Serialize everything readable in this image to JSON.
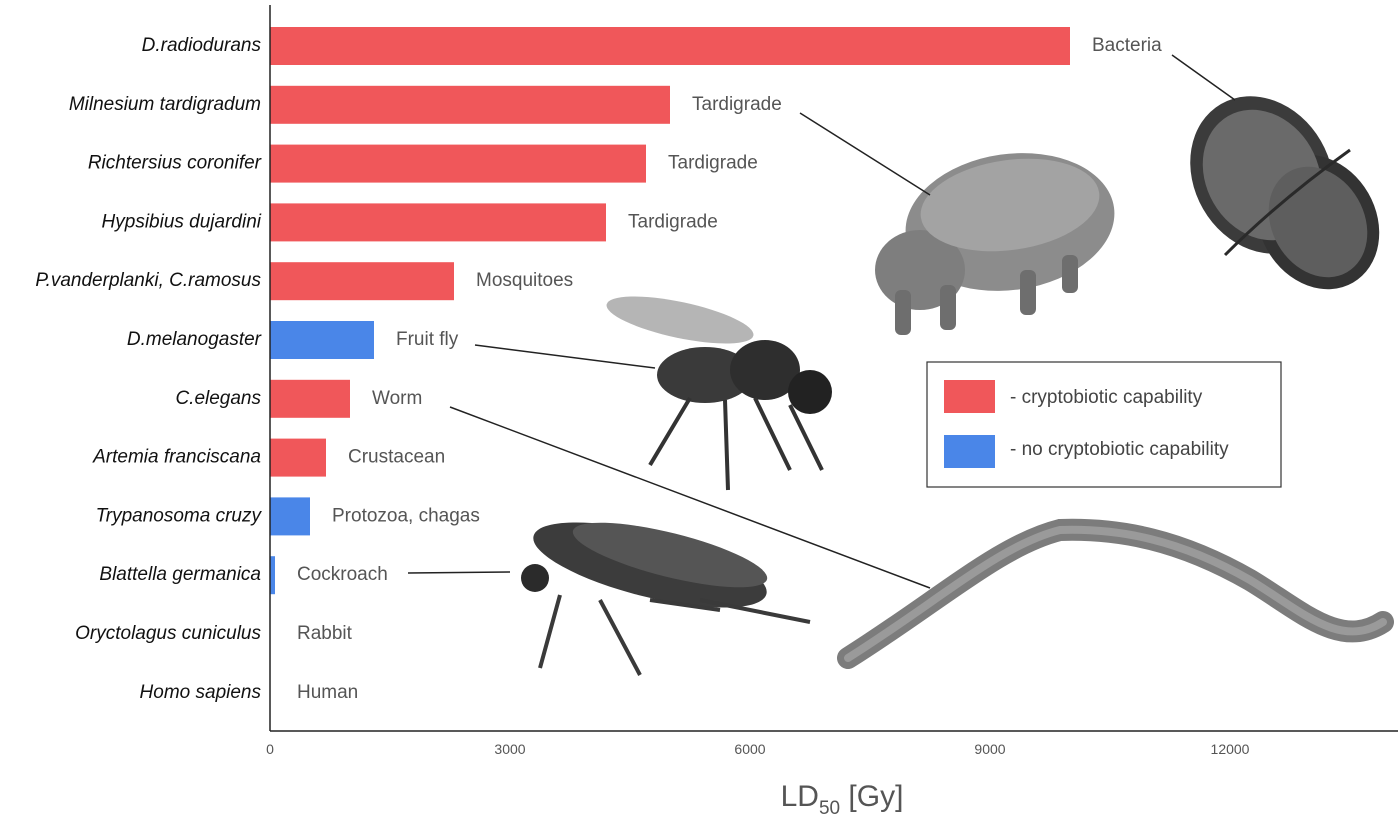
{
  "chart_data": {
    "type": "bar",
    "orientation": "horizontal",
    "title": "",
    "xlabel_main": "LD",
    "xlabel_sub": "50",
    "xlabel_unit": " [Gy]",
    "xlim": [
      0,
      14000
    ],
    "xticks": [
      0,
      3000,
      6000,
      9000,
      12000
    ],
    "grid": false,
    "legend_placement": "right-center",
    "colors": {
      "cryptobiotic": "#F0575A",
      "non_cryptobiotic": "#4A86E8"
    },
    "legend": [
      {
        "label": "- cryptobiotic capability",
        "color": "#F0575A"
      },
      {
        "label": "- no cryptobiotic capability",
        "color": "#4A86E8"
      }
    ],
    "categories": [
      {
        "name": "D.radiodurans",
        "group": "Bacteria",
        "value": 10000,
        "cryptobiotic": true
      },
      {
        "name": "Milnesium tardigradum",
        "group": "Tardigrade",
        "value": 5000,
        "cryptobiotic": true
      },
      {
        "name": "Richtersius coronifer",
        "group": "Tardigrade",
        "value": 4700,
        "cryptobiotic": true
      },
      {
        "name": "Hypsibius dujardini",
        "group": "Tardigrade",
        "value": 4200,
        "cryptobiotic": true
      },
      {
        "name": "P.vanderplanki, C.ramosus",
        "group": "Mosquitoes",
        "value": 2300,
        "cryptobiotic": true
      },
      {
        "name": "D.melanogaster",
        "group": "Fruit fly",
        "value": 1300,
        "cryptobiotic": false
      },
      {
        "name": "C.elegans",
        "group": "Worm",
        "value": 1000,
        "cryptobiotic": true
      },
      {
        "name": "Artemia franciscana",
        "group": "Crustacean",
        "value": 700,
        "cryptobiotic": true
      },
      {
        "name": "Trypanosoma cruzy",
        "group": "Protozoa, chagas",
        "value": 500,
        "cryptobiotic": false
      },
      {
        "name": "Blattella germanica",
        "group": "Cockroach",
        "value": 60,
        "cryptobiotic": false
      },
      {
        "name": "Oryctolagus cuniculus",
        "group": "Rabbit",
        "value": 0,
        "cryptobiotic": false
      },
      {
        "name": "Homo sapiens",
        "group": "Human",
        "value": 0,
        "cryptobiotic": false
      }
    ]
  }
}
